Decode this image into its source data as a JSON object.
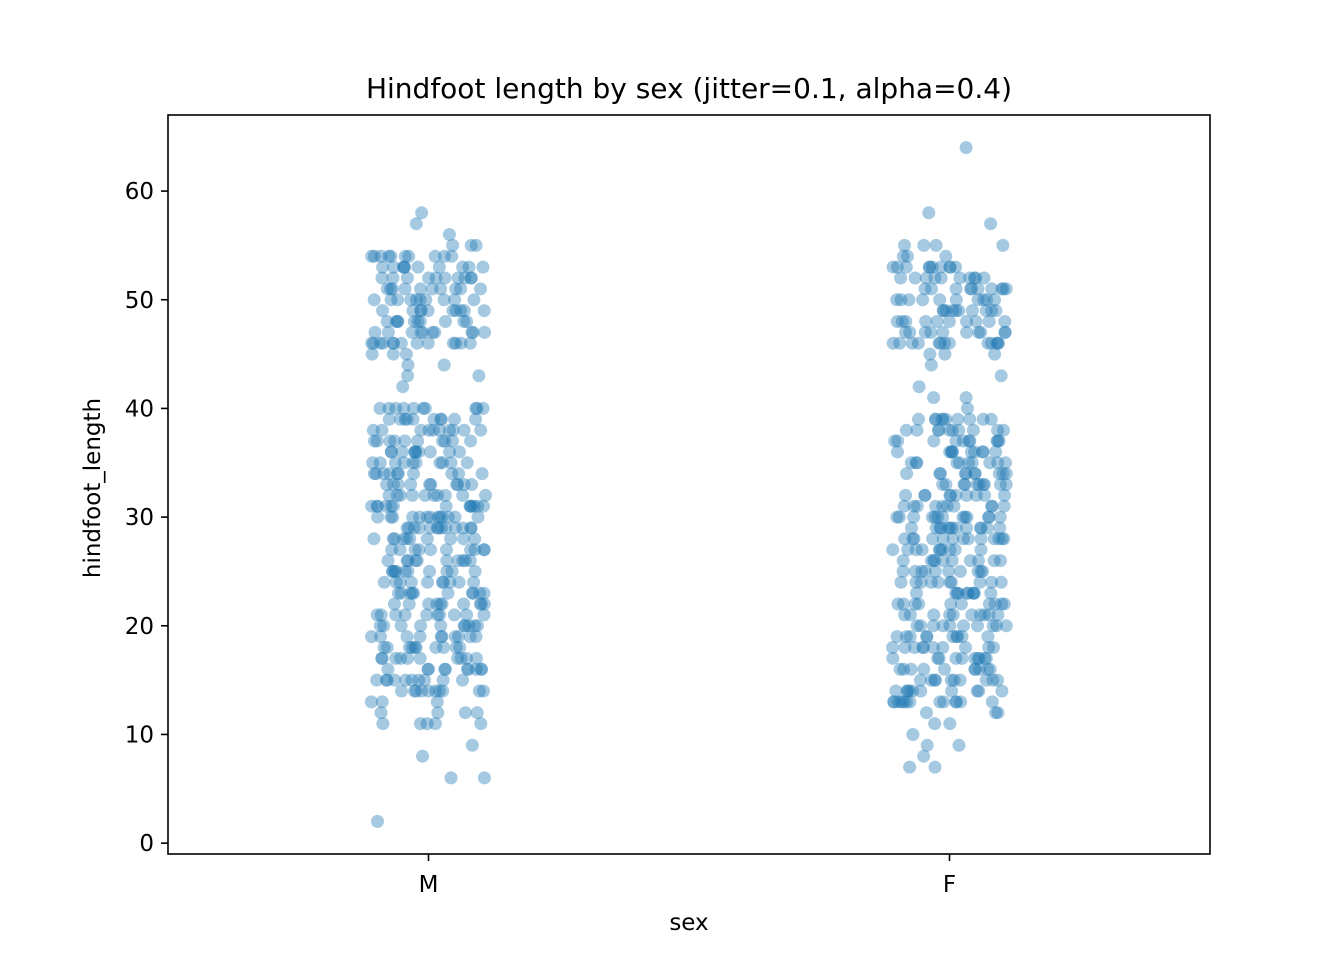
{
  "chart_data": {
    "type": "scatter",
    "plot_kind": "strip",
    "title": "Hindfoot length by sex (jitter=0.1, alpha=0.4)",
    "xlabel": "sex",
    "ylabel": "hindfoot_length",
    "categories": [
      "M",
      "F"
    ],
    "ylim": [
      -1,
      67
    ],
    "yticks": [
      0,
      10,
      20,
      30,
      40,
      50,
      60
    ],
    "jitter": 0.1,
    "alpha": 0.4,
    "color": "#1f77b4",
    "grid": false,
    "series": [
      {
        "name": "M",
        "bands": [
          {
            "from": 14,
            "to": 28,
            "density": "high"
          },
          {
            "from": 29,
            "to": 40,
            "density": "high"
          },
          {
            "from": 46,
            "to": 54,
            "density": "high"
          },
          {
            "from": 11,
            "to": 13,
            "density": "low"
          },
          {
            "from": 29,
            "to": 31,
            "density": "low"
          },
          {
            "from": 45,
            "to": 46,
            "density": "low"
          },
          {
            "from": 55,
            "to": 55,
            "density": "low"
          }
        ],
        "outliers": [
          2,
          6,
          6,
          8,
          9,
          11,
          11,
          12,
          42,
          43,
          43,
          44,
          44,
          56,
          57,
          58
        ]
      },
      {
        "name": "F",
        "bands": [
          {
            "from": 13,
            "to": 27,
            "density": "high"
          },
          {
            "from": 28,
            "to": 39,
            "density": "high"
          },
          {
            "from": 46,
            "to": 53,
            "density": "high"
          },
          {
            "from": 12,
            "to": 13,
            "density": "low"
          },
          {
            "from": 28,
            "to": 30,
            "density": "low"
          },
          {
            "from": 45,
            "to": 46,
            "density": "low"
          },
          {
            "from": 54,
            "to": 55,
            "density": "low"
          }
        ],
        "outliers": [
          7,
          7,
          8,
          9,
          9,
          10,
          11,
          11,
          40,
          41,
          41,
          42,
          43,
          44,
          55,
          57,
          58,
          64
        ]
      }
    ]
  }
}
